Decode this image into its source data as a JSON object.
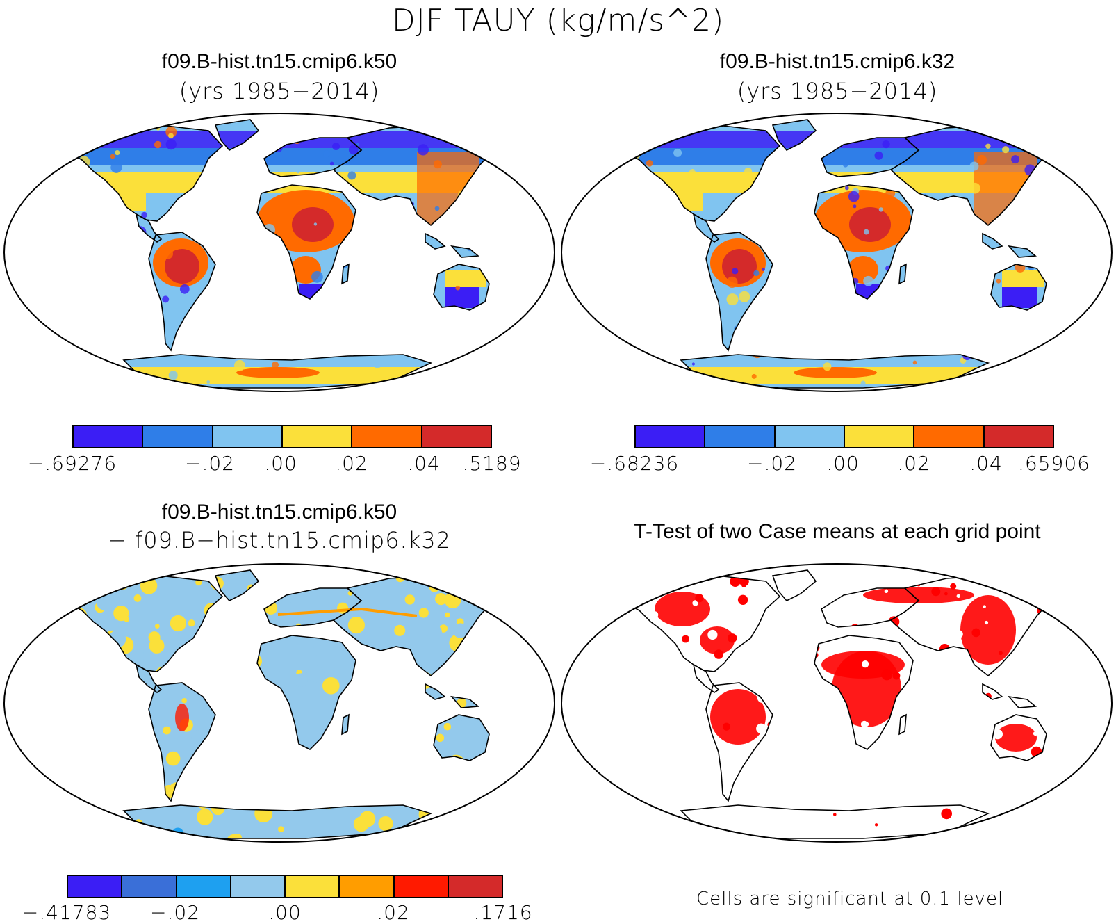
{
  "title": "DJF TAUY (kg/m/s^2)",
  "panels": [
    {
      "title": "f09.B-hist.tn15.cmip6.k50",
      "subtitle": "(yrs 1985−2014)",
      "colorbar": {
        "colors": [
          "#3b1ef5",
          "#2f7ee8",
          "#80c4f0",
          "#fbe03a",
          "#ff6a00",
          "#d42a2a"
        ],
        "ticks": [
          "−.69276",
          "−.02",
          ".00",
          ".02",
          ".04",
          ".5189"
        ]
      }
    },
    {
      "title": "f09.B-hist.tn15.cmip6.k32",
      "subtitle": "(yrs 1985−2014)",
      "colorbar": {
        "colors": [
          "#3b1ef5",
          "#2f7ee8",
          "#80c4f0",
          "#fbe03a",
          "#ff6a00",
          "#d42a2a"
        ],
        "ticks": [
          "−.68236",
          "−.02",
          ".00",
          ".02",
          ".04",
          ".65906"
        ]
      }
    },
    {
      "title": "f09.B-hist.tn15.cmip6.k50",
      "subtitle": "− f09.B−hist.tn15.cmip6.k32",
      "colorbar": {
        "colors": [
          "#3b1ef5",
          "#3a6fd8",
          "#1ea0f0",
          "#93c9ec",
          "#fbe03a",
          "#ff9d00",
          "#ff1a00",
          "#d42a2a"
        ],
        "ticks": [
          "−.41783",
          "−.02",
          ".00",
          ".02",
          ".1716"
        ]
      }
    },
    {
      "title": "T-Test of two Case means at each grid point",
      "note": "Cells are significant at 0.1 level",
      "significant_color": "#ff0000"
    }
  ]
}
